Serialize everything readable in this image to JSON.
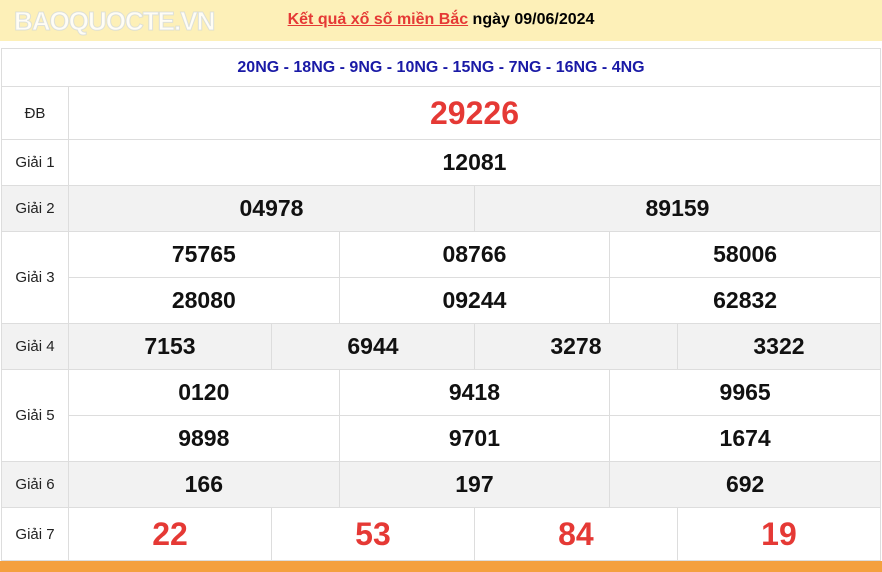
{
  "header": {
    "link": "Kết quả xổ số miền Bắc",
    "date_text": " ngày 09/06/2024"
  },
  "codes": "20NG - 18NG - 9NG - 10NG - 15NG - 7NG - 16NG - 4NG",
  "prizes": {
    "db": {
      "label": "ĐB",
      "values": [
        "29226"
      ]
    },
    "g1": {
      "label": "Giải 1",
      "values": [
        "12081"
      ]
    },
    "g2": {
      "label": "Giải 2",
      "values": [
        "04978",
        "89159"
      ]
    },
    "g3": {
      "label": "Giải 3",
      "values": [
        "75765",
        "08766",
        "58006",
        "28080",
        "09244",
        "62832"
      ]
    },
    "g4": {
      "label": "Giải 4",
      "values": [
        "7153",
        "6944",
        "3278",
        "3322"
      ]
    },
    "g5": {
      "label": "Giải 5",
      "values": [
        "0120",
        "9418",
        "9965",
        "9898",
        "9701",
        "1674"
      ]
    },
    "g6": {
      "label": "Giải 6",
      "values": [
        "166",
        "197",
        "692"
      ]
    },
    "g7": {
      "label": "Giải 7",
      "values": [
        "22",
        "53",
        "84",
        "19"
      ]
    }
  },
  "watermark": "BAOQUOCTE.VN",
  "colors": {
    "accent_red": "#e53935",
    "code_blue": "#1a1aa6",
    "header_bg": "#fdf0b8",
    "footer_orange": "#f4a03f"
  }
}
